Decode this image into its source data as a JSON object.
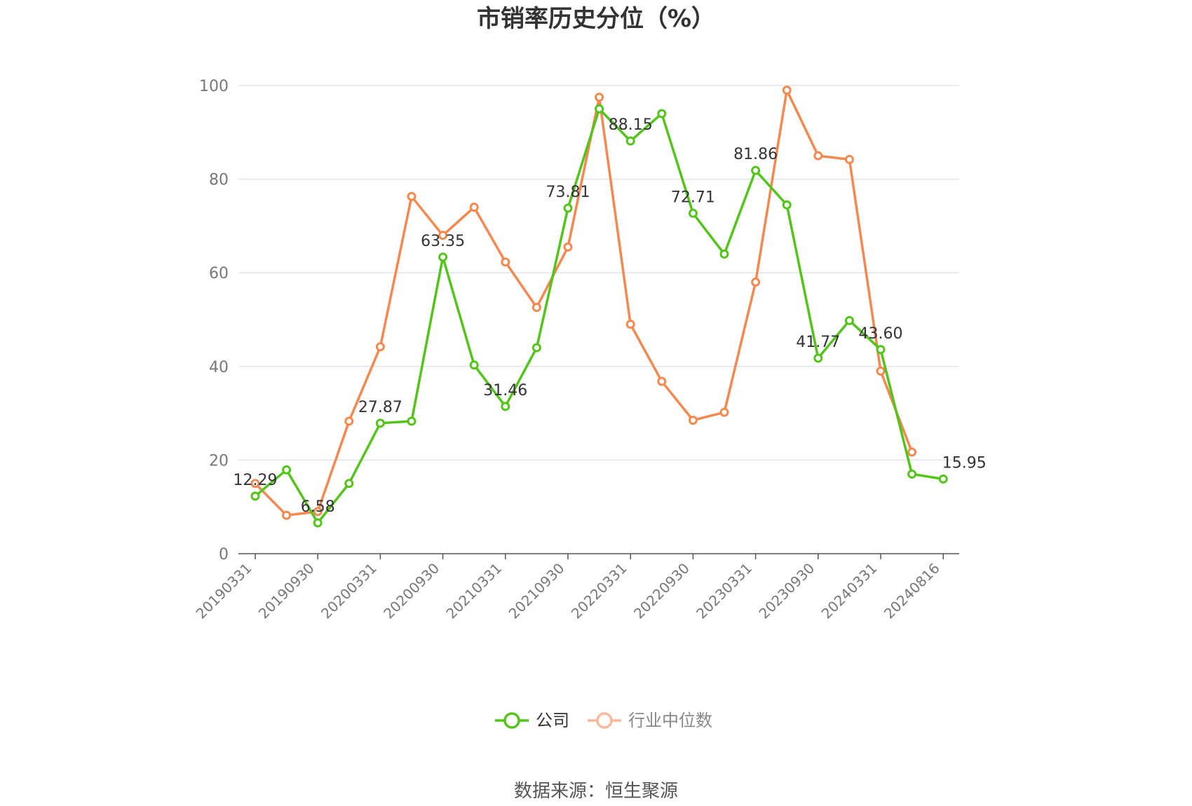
{
  "chart_data": {
    "type": "line",
    "title": "市销率历史分位（%）",
    "source": "数据来源：恒生聚源",
    "ylim": [
      0,
      100
    ],
    "y_ticks": [
      0,
      20,
      40,
      60,
      80,
      100
    ],
    "x_tick_labels": [
      "20190331",
      "20190930",
      "20200331",
      "20200930",
      "20210331",
      "20210930",
      "20220331",
      "20220930",
      "20230331",
      "20230930",
      "20240331",
      "20240816"
    ],
    "grid": true,
    "legend_position": "bottom-center",
    "x": [
      "20190331",
      "20190630",
      "20190930",
      "20191231",
      "20200331",
      "20200630",
      "20200930",
      "20201231",
      "20210331",
      "20210630",
      "20210930",
      "20211231",
      "20220331",
      "20220630",
      "20220930",
      "20221231",
      "20230331",
      "20230630",
      "20230930",
      "20231231",
      "20240331",
      "20240630",
      "20240816"
    ],
    "series": [
      {
        "name": "公司",
        "color": "#52c41a",
        "values": [
          12.29,
          17.9,
          6.58,
          15.0,
          27.87,
          28.3,
          63.35,
          40.3,
          31.46,
          44.0,
          73.81,
          95.0,
          88.15,
          94.0,
          72.71,
          64.0,
          81.86,
          74.5,
          41.77,
          49.8,
          43.6,
          17.0,
          15.95
        ],
        "labels": [
          "12.29",
          null,
          "6.58",
          null,
          "27.87",
          null,
          "63.35",
          null,
          "31.46",
          null,
          "73.81",
          null,
          "88.15",
          null,
          "72.71",
          null,
          "81.86",
          null,
          "41.77",
          null,
          "43.60",
          null,
          "15.95"
        ]
      },
      {
        "name": "行业中位数",
        "color": "#f5884f",
        "values": [
          15.0,
          8.2,
          9.0,
          28.3,
          44.2,
          76.3,
          68.0,
          74.0,
          62.3,
          52.6,
          65.5,
          97.5,
          49.0,
          36.8,
          28.5,
          30.2,
          58.0,
          99.0,
          85.0,
          84.2,
          39.0,
          21.7,
          null
        ]
      }
    ]
  }
}
